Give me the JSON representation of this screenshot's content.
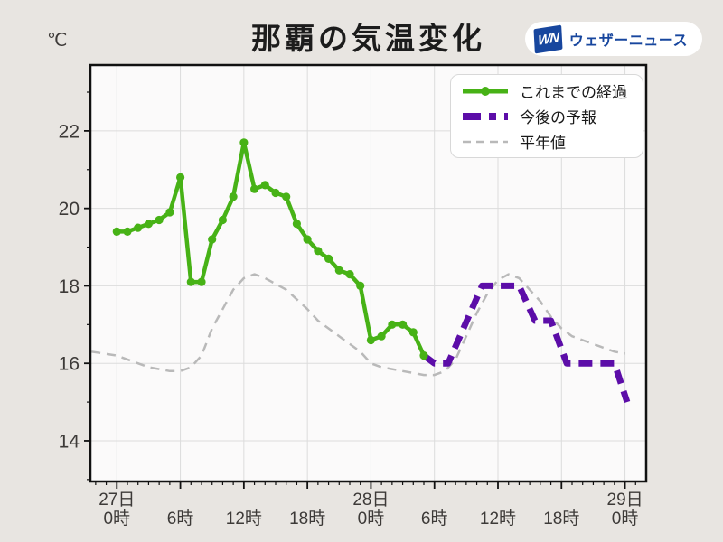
{
  "chart_data": {
    "type": "line",
    "title": "那覇の気温変化",
    "unit_label": "℃",
    "xlabel": "",
    "ylabel": "℃",
    "xlim": [
      -2.5,
      50
    ],
    "ylim": [
      12.95,
      23.7
    ],
    "grid": true,
    "legend_position": "top-right",
    "x_unit": "hours-from-27th-0時",
    "y_ticks": [
      14,
      16,
      18,
      20,
      22
    ],
    "y_minor_ticks": [
      13,
      15,
      17,
      19,
      21,
      23
    ],
    "x_minor_step": 1,
    "x_major_ticks": [
      {
        "t": 0,
        "day": "27日",
        "hour": "0時"
      },
      {
        "t": 6,
        "hour": "6時"
      },
      {
        "t": 12,
        "hour": "12時"
      },
      {
        "t": 18,
        "hour": "18時"
      },
      {
        "t": 24,
        "day": "28日",
        "hour": "0時"
      },
      {
        "t": 30,
        "hour": "6時"
      },
      {
        "t": 36,
        "hour": "12時"
      },
      {
        "t": 42,
        "hour": "18時"
      },
      {
        "t": 48,
        "day": "29日",
        "hour": "0時"
      }
    ],
    "series": [
      {
        "id": "observed",
        "name": "これまでの経過",
        "style": "solid-with-markers",
        "color": "#47b216",
        "x_start": 0,
        "x_step": 1,
        "values": [
          19.4,
          19.4,
          19.5,
          19.6,
          19.7,
          19.9,
          20.8,
          18.1,
          18.1,
          19.2,
          19.7,
          20.3,
          21.7,
          20.5,
          20.6,
          20.4,
          20.3,
          19.6,
          19.2,
          18.9,
          18.7,
          18.4,
          18.3,
          18.0,
          16.6,
          16.7,
          17.0,
          17.0,
          16.8,
          16.2
        ]
      },
      {
        "id": "forecast",
        "name": "今後の予報",
        "style": "dashed-thick",
        "color": "#5c0da8",
        "points": [
          [
            29,
            16.2
          ],
          [
            30,
            16.0
          ],
          [
            31.3,
            16.0
          ],
          [
            34.5,
            18.0
          ],
          [
            38,
            18.0
          ],
          [
            39.5,
            17.1
          ],
          [
            41,
            17.1
          ],
          [
            42.5,
            16.0
          ],
          [
            47,
            16.0
          ],
          [
            48.2,
            15.0
          ]
        ]
      },
      {
        "id": "normal",
        "name": "平年値",
        "style": "dashed-thin",
        "color": "#b9b9b9",
        "points": [
          [
            -2.4,
            16.3
          ],
          [
            0,
            16.2
          ],
          [
            1,
            16.1
          ],
          [
            2,
            16.0
          ],
          [
            3,
            15.9
          ],
          [
            4,
            15.85
          ],
          [
            5,
            15.8
          ],
          [
            6,
            15.8
          ],
          [
            7,
            15.9
          ],
          [
            8,
            16.2
          ],
          [
            9,
            16.9
          ],
          [
            10,
            17.4
          ],
          [
            11,
            17.9
          ],
          [
            12,
            18.2
          ],
          [
            13,
            18.3
          ],
          [
            14,
            18.2
          ],
          [
            15,
            18.05
          ],
          [
            16,
            17.9
          ],
          [
            17,
            17.65
          ],
          [
            18,
            17.4
          ],
          [
            19,
            17.1
          ],
          [
            20,
            16.9
          ],
          [
            21,
            16.7
          ],
          [
            22,
            16.5
          ],
          [
            23,
            16.3
          ],
          [
            24,
            16.0
          ],
          [
            25,
            15.9
          ],
          [
            26,
            15.85
          ],
          [
            27,
            15.8
          ],
          [
            28,
            15.75
          ],
          [
            29,
            15.7
          ],
          [
            30,
            15.7
          ],
          [
            31,
            15.8
          ],
          [
            32,
            16.1
          ],
          [
            33,
            16.7
          ],
          [
            34,
            17.3
          ],
          [
            35,
            17.8
          ],
          [
            36,
            18.15
          ],
          [
            37,
            18.3
          ],
          [
            38,
            18.2
          ],
          [
            39,
            17.9
          ],
          [
            40,
            17.6
          ],
          [
            41,
            17.2
          ],
          [
            42,
            16.9
          ],
          [
            43,
            16.7
          ],
          [
            44,
            16.6
          ],
          [
            45,
            16.5
          ],
          [
            46,
            16.4
          ],
          [
            47,
            16.3
          ],
          [
            48,
            16.25
          ]
        ]
      }
    ]
  },
  "logo": {
    "mark": "WN",
    "text": "ウェザーニュース"
  },
  "colors": {
    "page_bg": "#e8e5e1",
    "plot_bg": "#fbfafa",
    "grid": "#dcdcdc",
    "axis": "#111111",
    "tick_text": "#3d3a38",
    "title_text": "#1c1c1c",
    "logo_blue": "#17469e",
    "logo_bg": "#ffffff",
    "legend_bg": "#ffffff",
    "legend_border": "#d8d8d8",
    "legend_text": "#1a1a1a"
  }
}
